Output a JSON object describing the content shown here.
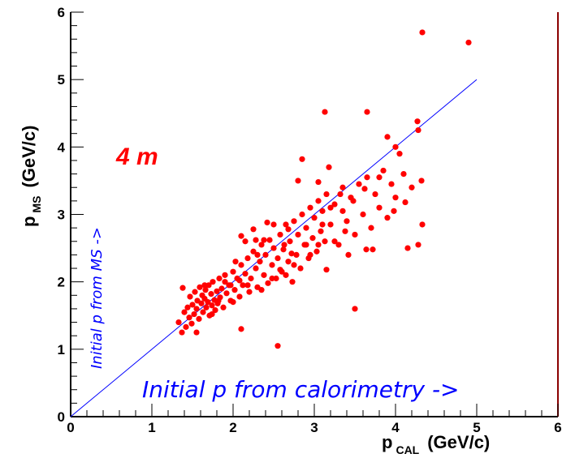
{
  "chart_data": {
    "type": "scatter",
    "title": "",
    "xlim": [
      0,
      6
    ],
    "ylim": [
      0,
      6
    ],
    "xticks": [
      "0",
      "1",
      "2",
      "3",
      "4",
      "5",
      "6"
    ],
    "yticks": [
      "0",
      "1",
      "2",
      "3",
      "4",
      "5",
      "6"
    ],
    "xlabel": {
      "main": "p",
      "sub": "CAL",
      "unit": "(GeV/c)"
    },
    "ylabel": {
      "main": "p",
      "sub": "MS",
      "unit": "(GeV/c)"
    },
    "grid": false,
    "colors": {
      "points": "#ff0000",
      "line": "#0000ff",
      "frame": "#000000",
      "right_edge": "#8b0000"
    },
    "reference_line": {
      "from": [
        0,
        0
      ],
      "to": [
        5,
        5
      ]
    },
    "annotations": {
      "label_4m": "4 m",
      "x_note": "Initial p from calorimetry ->",
      "y_note": "Initial p from MS ->"
    },
    "series": [
      {
        "points": [
          [
            1.33,
            1.4
          ],
          [
            1.37,
            1.25
          ],
          [
            1.38,
            1.91
          ],
          [
            1.4,
            1.55
          ],
          [
            1.42,
            1.33
          ],
          [
            1.44,
            1.62
          ],
          [
            1.46,
            1.47
          ],
          [
            1.47,
            1.78
          ],
          [
            1.49,
            1.38
          ],
          [
            1.5,
            1.66
          ],
          [
            1.52,
            1.52
          ],
          [
            1.53,
            1.85
          ],
          [
            1.55,
            1.6
          ],
          [
            1.56,
            1.72
          ],
          [
            1.58,
            1.45
          ],
          [
            1.59,
            1.92
          ],
          [
            1.61,
            1.68
          ],
          [
            1.62,
            1.8
          ],
          [
            1.63,
            1.55
          ],
          [
            1.65,
            1.75
          ],
          [
            1.66,
            1.88
          ],
          [
            1.67,
            1.62
          ],
          [
            1.69,
            1.7
          ],
          [
            1.7,
            1.95
          ],
          [
            1.71,
            1.5
          ],
          [
            1.73,
            1.82
          ],
          [
            1.74,
            1.65
          ],
          [
            1.75,
            2.0
          ],
          [
            1.77,
            1.73
          ],
          [
            1.78,
            1.58
          ],
          [
            1.8,
            1.86
          ],
          [
            1.81,
            1.68
          ],
          [
            1.83,
            2.05
          ],
          [
            1.84,
            1.77
          ],
          [
            1.86,
            1.9
          ],
          [
            1.88,
            1.62
          ],
          [
            1.9,
            2.1
          ],
          [
            1.92,
            1.83
          ],
          [
            1.95,
            1.95
          ],
          [
            1.97,
            1.72
          ],
          [
            2.0,
            2.15
          ],
          [
            2.02,
            1.88
          ],
          [
            2.05,
            2.05
          ],
          [
            2.08,
            1.78
          ],
          [
            2.1,
            2.25
          ],
          [
            2.12,
            1.95
          ],
          [
            2.15,
            2.12
          ],
          [
            2.18,
            2.35
          ],
          [
            2.2,
            1.85
          ],
          [
            2.22,
            2.05
          ],
          [
            2.25,
            2.45
          ],
          [
            2.28,
            2.2
          ],
          [
            2.3,
            1.92
          ],
          [
            2.33,
            2.3
          ],
          [
            2.35,
            2.55
          ],
          [
            2.38,
            2.1
          ],
          [
            2.4,
            2.4
          ],
          [
            2.43,
            1.98
          ],
          [
            2.45,
            2.62
          ],
          [
            2.48,
            2.25
          ],
          [
            2.5,
            2.5
          ],
          [
            2.53,
            2.05
          ],
          [
            2.55,
            2.35
          ],
          [
            2.58,
            2.7
          ],
          [
            2.6,
            2.15
          ],
          [
            2.63,
            2.55
          ],
          [
            2.65,
            2.85
          ],
          [
            2.68,
            2.3
          ],
          [
            2.7,
            2.6
          ],
          [
            2.73,
            2.0
          ],
          [
            2.75,
            2.9
          ],
          [
            2.78,
            2.4
          ],
          [
            2.8,
            2.7
          ],
          [
            2.83,
            2.2
          ],
          [
            2.85,
            3.0
          ],
          [
            2.88,
            2.55
          ],
          [
            2.9,
            2.8
          ],
          [
            2.93,
            2.35
          ],
          [
            2.95,
            3.1
          ],
          [
            2.98,
            2.65
          ],
          [
            3.0,
            2.95
          ],
          [
            3.03,
            2.45
          ],
          [
            3.05,
            3.2
          ],
          [
            3.08,
            2.75
          ],
          [
            3.1,
            3.05
          ],
          [
            3.13,
            2.6
          ],
          [
            3.15,
            3.3
          ],
          [
            3.2,
            2.85
          ],
          [
            3.25,
            3.15
          ],
          [
            3.3,
            2.55
          ],
          [
            3.35,
            3.4
          ],
          [
            3.4,
            2.9
          ],
          [
            3.45,
            3.25
          ],
          [
            3.5,
            2.7
          ],
          [
            3.55,
            3.45
          ],
          [
            3.6,
            3.0
          ],
          [
            3.65,
            3.55
          ],
          [
            3.7,
            2.8
          ],
          [
            3.75,
            3.3
          ],
          [
            3.8,
            3.1
          ],
          [
            3.85,
            3.65
          ],
          [
            3.9,
            2.95
          ],
          [
            3.95,
            3.45
          ],
          [
            4.0,
            3.25
          ],
          [
            4.05,
            3.9
          ],
          [
            4.1,
            3.6
          ],
          [
            4.15,
            2.5
          ],
          [
            4.2,
            3.4
          ],
          [
            4.28,
            2.55
          ],
          [
            4.32,
            3.5
          ],
          [
            4.33,
            2.85
          ],
          [
            3.64,
            2.48
          ],
          [
            3.72,
            2.48
          ],
          [
            3.5,
            1.6
          ],
          [
            2.55,
            1.05
          ],
          [
            2.1,
            1.3
          ],
          [
            1.55,
            1.25
          ],
          [
            3.13,
            4.52
          ],
          [
            3.65,
            4.52
          ],
          [
            3.9,
            4.15
          ],
          [
            4.0,
            4.0
          ],
          [
            4.27,
            4.38
          ],
          [
            4.28,
            4.25
          ],
          [
            4.33,
            5.7
          ],
          [
            4.9,
            5.55
          ],
          [
            2.25,
            2.78
          ],
          [
            2.42,
            2.88
          ],
          [
            2.1,
            2.68
          ],
          [
            2.62,
            2.48
          ],
          [
            1.9,
            2.0
          ],
          [
            1.74,
            1.52
          ],
          [
            1.97,
            1.95
          ],
          [
            2.03,
            2.3
          ],
          [
            2.28,
            2.62
          ],
          [
            2.35,
            1.88
          ],
          [
            2.48,
            2.05
          ],
          [
            2.65,
            2.1
          ],
          [
            2.72,
            2.42
          ],
          [
            2.8,
            3.5
          ],
          [
            2.85,
            3.82
          ],
          [
            3.05,
            2.55
          ],
          [
            3.18,
            3.7
          ],
          [
            3.25,
            2.6
          ],
          [
            3.35,
            3.05
          ],
          [
            3.42,
            2.4
          ],
          [
            3.62,
            3.38
          ],
          [
            3.8,
            3.55
          ],
          [
            3.98,
            3.05
          ],
          [
            4.12,
            3.18
          ],
          [
            2.15,
            2.6
          ],
          [
            1.65,
            1.95
          ],
          [
            1.82,
            1.72
          ],
          [
            2.0,
            1.7
          ],
          [
            2.08,
            2.02
          ],
          [
            2.18,
            1.95
          ],
          [
            2.3,
            2.4
          ],
          [
            2.38,
            2.62
          ],
          [
            2.5,
            2.85
          ],
          [
            2.58,
            2.18
          ],
          [
            2.68,
            2.78
          ],
          [
            2.75,
            2.25
          ],
          [
            2.9,
            2.55
          ],
          [
            2.95,
            2.4
          ],
          [
            3.05,
            3.48
          ],
          [
            3.1,
            2.85
          ],
          [
            3.15,
            2.18
          ],
          [
            3.2,
            3.1
          ],
          [
            3.32,
            3.3
          ],
          [
            3.38,
            2.75
          ],
          [
            3.48,
            3.2
          ]
        ]
      }
    ]
  }
}
